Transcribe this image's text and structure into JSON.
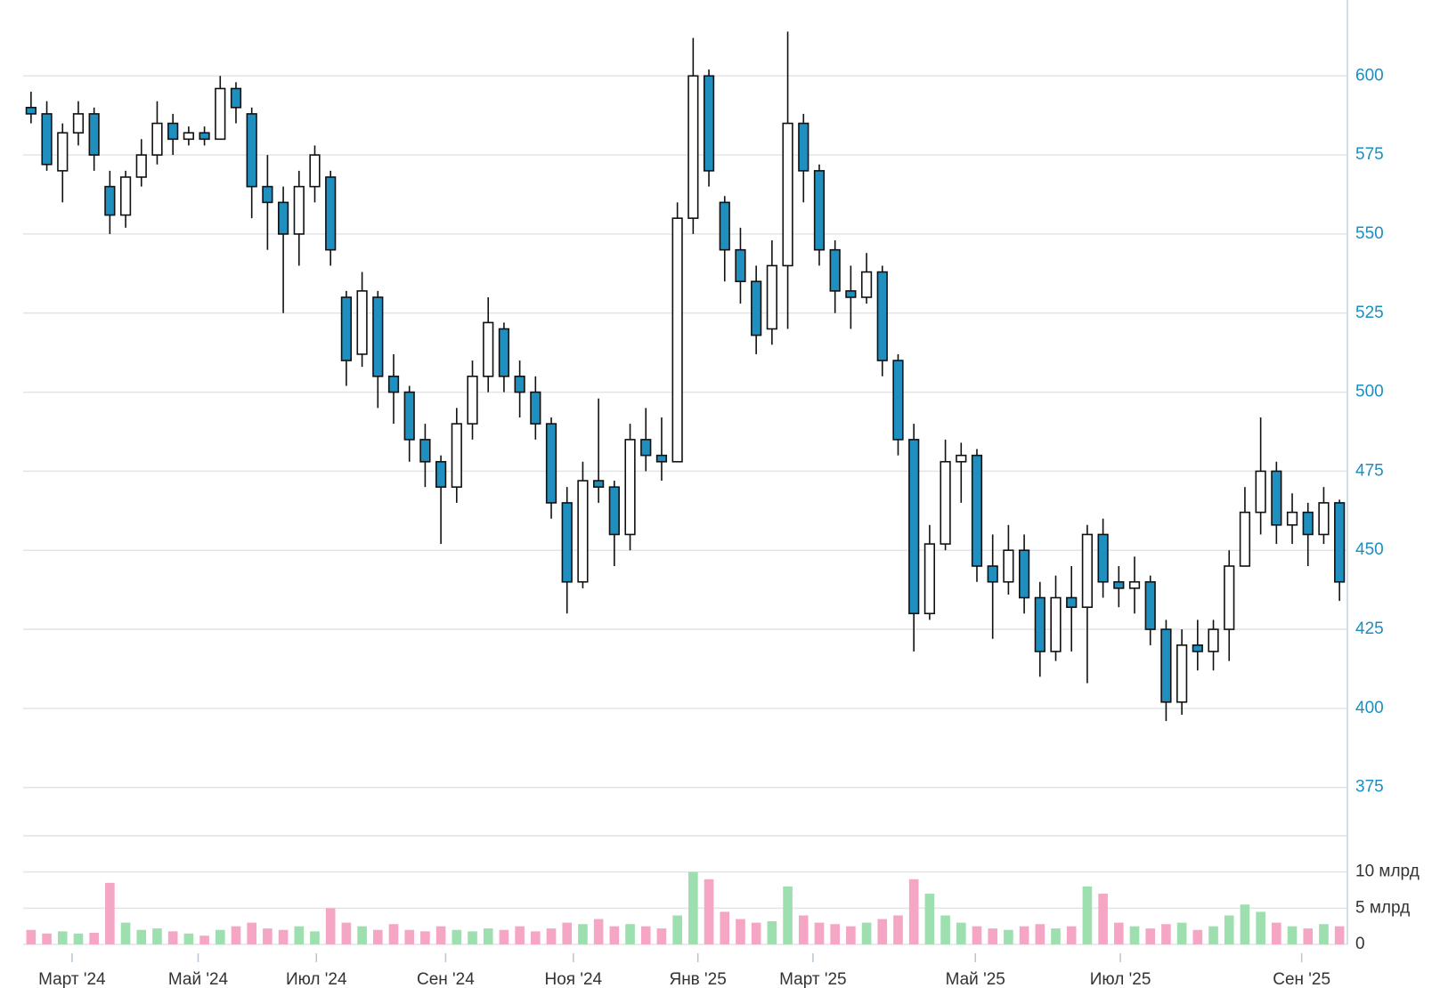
{
  "chart_data": {
    "type": "candlestick",
    "x": [
      0,
      1,
      2,
      3,
      4,
      5,
      6,
      7,
      8,
      9,
      10,
      11,
      12,
      13,
      14,
      15,
      16,
      17,
      18,
      19,
      20,
      21,
      22,
      23,
      24,
      25,
      26,
      27,
      28,
      29,
      30,
      31,
      32,
      33,
      34,
      35,
      36,
      37,
      38,
      39,
      40,
      41,
      42,
      43,
      44,
      45,
      46,
      47,
      48,
      49,
      50,
      51,
      52,
      53,
      54,
      55,
      56,
      57,
      58,
      59,
      60,
      61,
      62,
      63,
      64,
      65,
      66,
      67,
      68,
      69,
      70,
      71,
      72,
      73,
      74,
      75,
      76,
      77,
      78,
      79,
      80,
      81,
      82,
      83
    ],
    "open": [
      590,
      588,
      570,
      582,
      588,
      565,
      556,
      568,
      575,
      585,
      580,
      582,
      580,
      596,
      588,
      565,
      560,
      550,
      565,
      568,
      530,
      512,
      530,
      505,
      500,
      485,
      478,
      470,
      490,
      505,
      520,
      505,
      500,
      490,
      465,
      440,
      472,
      470,
      455,
      485,
      480,
      478,
      555,
      600,
      560,
      545,
      535,
      520,
      540,
      585,
      570,
      545,
      532,
      530,
      538,
      510,
      485,
      430,
      452,
      478,
      480,
      445,
      440,
      450,
      435,
      418,
      435,
      432,
      455,
      440,
      438,
      440,
      425,
      402,
      420,
      418,
      425,
      445,
      462,
      475,
      458,
      462,
      455,
      465
    ],
    "high": [
      595,
      592,
      585,
      592,
      590,
      570,
      570,
      580,
      592,
      588,
      584,
      584,
      600,
      598,
      590,
      575,
      565,
      570,
      578,
      570,
      532,
      538,
      532,
      512,
      502,
      490,
      480,
      495,
      510,
      530,
      522,
      510,
      505,
      492,
      470,
      478,
      498,
      472,
      490,
      495,
      492,
      560,
      612,
      602,
      562,
      552,
      540,
      548,
      614,
      588,
      572,
      548,
      540,
      544,
      540,
      512,
      490,
      458,
      485,
      484,
      482,
      455,
      458,
      455,
      440,
      442,
      445,
      458,
      460,
      445,
      448,
      442,
      428,
      425,
      428,
      428,
      450,
      470,
      492,
      478,
      468,
      465,
      470,
      466
    ],
    "low": [
      585,
      570,
      560,
      578,
      570,
      550,
      552,
      565,
      572,
      575,
      578,
      578,
      580,
      585,
      555,
      545,
      525,
      540,
      560,
      540,
      502,
      508,
      495,
      490,
      478,
      470,
      452,
      465,
      485,
      500,
      500,
      492,
      485,
      460,
      430,
      438,
      465,
      445,
      450,
      475,
      472,
      478,
      550,
      565,
      535,
      528,
      512,
      515,
      520,
      560,
      540,
      525,
      520,
      528,
      505,
      480,
      418,
      428,
      450,
      465,
      440,
      422,
      436,
      430,
      410,
      415,
      418,
      408,
      435,
      432,
      430,
      420,
      396,
      398,
      412,
      412,
      415,
      445,
      455,
      452,
      452,
      445,
      452,
      434
    ],
    "close": [
      588,
      572,
      582,
      588,
      575,
      556,
      568,
      575,
      585,
      580,
      582,
      580,
      596,
      590,
      565,
      560,
      550,
      565,
      575,
      545,
      510,
      532,
      505,
      500,
      485,
      478,
      470,
      490,
      505,
      522,
      505,
      500,
      490,
      465,
      440,
      472,
      470,
      455,
      485,
      480,
      478,
      555,
      600,
      570,
      545,
      535,
      518,
      540,
      585,
      570,
      545,
      532,
      530,
      538,
      510,
      485,
      430,
      452,
      478,
      480,
      445,
      440,
      450,
      435,
      418,
      435,
      432,
      455,
      440,
      438,
      440,
      425,
      402,
      420,
      418,
      425,
      445,
      462,
      475,
      458,
      462,
      455,
      465,
      440
    ],
    "volume": [
      2,
      1.5,
      1.8,
      1.5,
      1.6,
      8.5,
      3,
      2,
      2.2,
      1.8,
      1.5,
      1.2,
      2,
      2.5,
      3,
      2.2,
      2,
      2.5,
      1.8,
      5,
      3,
      2.5,
      2,
      2.8,
      2,
      1.8,
      2.5,
      2,
      1.8,
      2.2,
      2,
      2.5,
      1.8,
      2.2,
      3,
      2.8,
      3.5,
      2.5,
      2.8,
      2.5,
      2.2,
      4,
      10,
      9,
      4.5,
      3.5,
      3,
      3.2,
      8,
      4,
      3,
      2.8,
      2.5,
      3,
      3.5,
      4,
      9,
      7,
      4,
      3,
      2.5,
      2.2,
      2,
      2.5,
      2.8,
      2.2,
      2.5,
      8,
      7,
      3,
      2.5,
      2.2,
      2.8,
      3,
      2,
      2.5,
      4,
      5.5,
      4.5,
      3,
      2.5,
      2.2,
      2.8,
      2.5
    ],
    "up_color": "#ffffff",
    "down_color": "#1f8fbf",
    "volume_up_color": "#9ddfae",
    "volume_down_color": "#f4a6c4",
    "xlim": [
      -0.5,
      83.5
    ],
    "xticks": [
      {
        "value": 2.6,
        "label": "Март '24"
      },
      {
        "value": 10.6,
        "label": "Май '24"
      },
      {
        "value": 18.1,
        "label": "Июл '24"
      },
      {
        "value": 26.3,
        "label": "Сен '24"
      },
      {
        "value": 34.4,
        "label": "Ноя '24"
      },
      {
        "value": 42.3,
        "label": "Янв '25"
      },
      {
        "value": 49.6,
        "label": "Март '25"
      },
      {
        "value": 59.9,
        "label": "Май '25"
      },
      {
        "value": 69.1,
        "label": "Июл '25"
      },
      {
        "value": 80.6,
        "label": "Сен '25"
      }
    ],
    "ylim": [
      360,
      624
    ],
    "yticks": [
      375,
      400,
      425,
      450,
      475,
      500,
      525,
      550,
      575,
      600
    ],
    "volume_ylim": [
      0,
      15
    ],
    "volume_yticks": [
      0,
      {
        "value": 5,
        "label": "5 млрд"
      },
      {
        "value": 10,
        "label": "10 млрд"
      }
    ],
    "grid": true
  }
}
